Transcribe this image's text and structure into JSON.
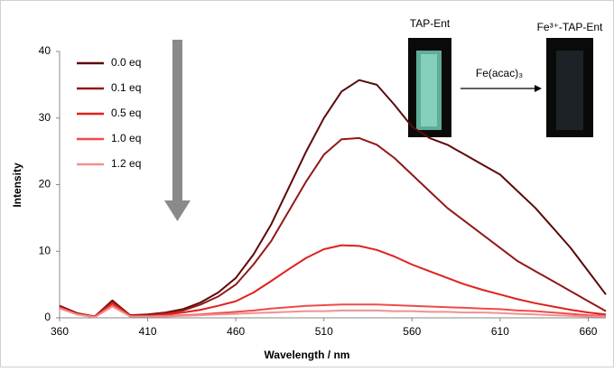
{
  "chart_data": {
    "type": "line",
    "x_label": "Wavelength / nm",
    "y_label": "Intensity",
    "x": [
      360,
      370,
      380,
      390,
      400,
      410,
      420,
      430,
      440,
      450,
      460,
      470,
      480,
      490,
      500,
      510,
      520,
      530,
      540,
      550,
      560,
      570,
      580,
      590,
      600,
      610,
      620,
      630,
      640,
      650,
      660,
      670
    ],
    "series": [
      {
        "name": "0.0 eq",
        "color": "#5c0a0a",
        "values": [
          1.8,
          0.7,
          0.2,
          2.6,
          0.4,
          0.5,
          0.8,
          1.3,
          2.3,
          3.8,
          6,
          9.5,
          14,
          19.5,
          25,
          30,
          34,
          35.7,
          35,
          32,
          28.7,
          27,
          26,
          24.5,
          23,
          21.5,
          19,
          16.5,
          13.5,
          10.5,
          7,
          3.5
        ]
      },
      {
        "name": "0.1 eq",
        "color": "#931818",
        "values": [
          1.7,
          0.6,
          0.2,
          2.4,
          0.4,
          0.4,
          0.7,
          1.1,
          2,
          3.2,
          5,
          8,
          11.5,
          16,
          20.5,
          24.5,
          26.8,
          27,
          26,
          24,
          21.5,
          19,
          16.5,
          14.5,
          12.5,
          10.5,
          8.5,
          7,
          5.5,
          4,
          2.5,
          1
        ]
      },
      {
        "name": "0.5 eq",
        "color": "#e0201c",
        "values": [
          1.6,
          0.6,
          0.2,
          2.2,
          0.3,
          0.3,
          0.5,
          0.8,
          1.2,
          1.8,
          2.5,
          3.8,
          5.5,
          7.3,
          9,
          10.3,
          10.9,
          10.8,
          10.2,
          9.2,
          8,
          7,
          6,
          5,
          4.2,
          3.5,
          2.8,
          2.2,
          1.7,
          1.2,
          0.8,
          0.5
        ]
      },
      {
        "name": "1.0 eq",
        "color": "#f04a4a",
        "values": [
          1.5,
          0.5,
          0.1,
          1.9,
          0.2,
          0.2,
          0.3,
          0.4,
          0.5,
          0.7,
          0.9,
          1.1,
          1.4,
          1.6,
          1.8,
          1.9,
          2,
          2,
          2,
          1.9,
          1.8,
          1.7,
          1.6,
          1.5,
          1.4,
          1.3,
          1.1,
          1,
          0.8,
          0.6,
          0.4,
          0.3
        ]
      },
      {
        "name": "1.2 eq",
        "color": "#f29090",
        "values": [
          1.4,
          0.5,
          0.1,
          1.7,
          0.2,
          0.2,
          0.2,
          0.3,
          0.4,
          0.5,
          0.6,
          0.7,
          0.8,
          0.9,
          1,
          1,
          1.1,
          1.1,
          1.1,
          1,
          1,
          0.9,
          0.9,
          0.8,
          0.8,
          0.7,
          0.6,
          0.5,
          0.4,
          0.3,
          0.2,
          0.2
        ]
      }
    ],
    "xlim": [
      360,
      670
    ],
    "xticks": [
      360,
      410,
      460,
      510,
      560,
      610,
      660
    ],
    "ylim": [
      0,
      40
    ],
    "yticks": [
      0,
      10,
      20,
      30,
      40
    ],
    "grid": false,
    "legend": "upper left",
    "annotations": {
      "before": "TAP-Ent",
      "after": "Fe³⁺-TAP-Ent",
      "reagent": "Fe(acac)₃"
    }
  }
}
